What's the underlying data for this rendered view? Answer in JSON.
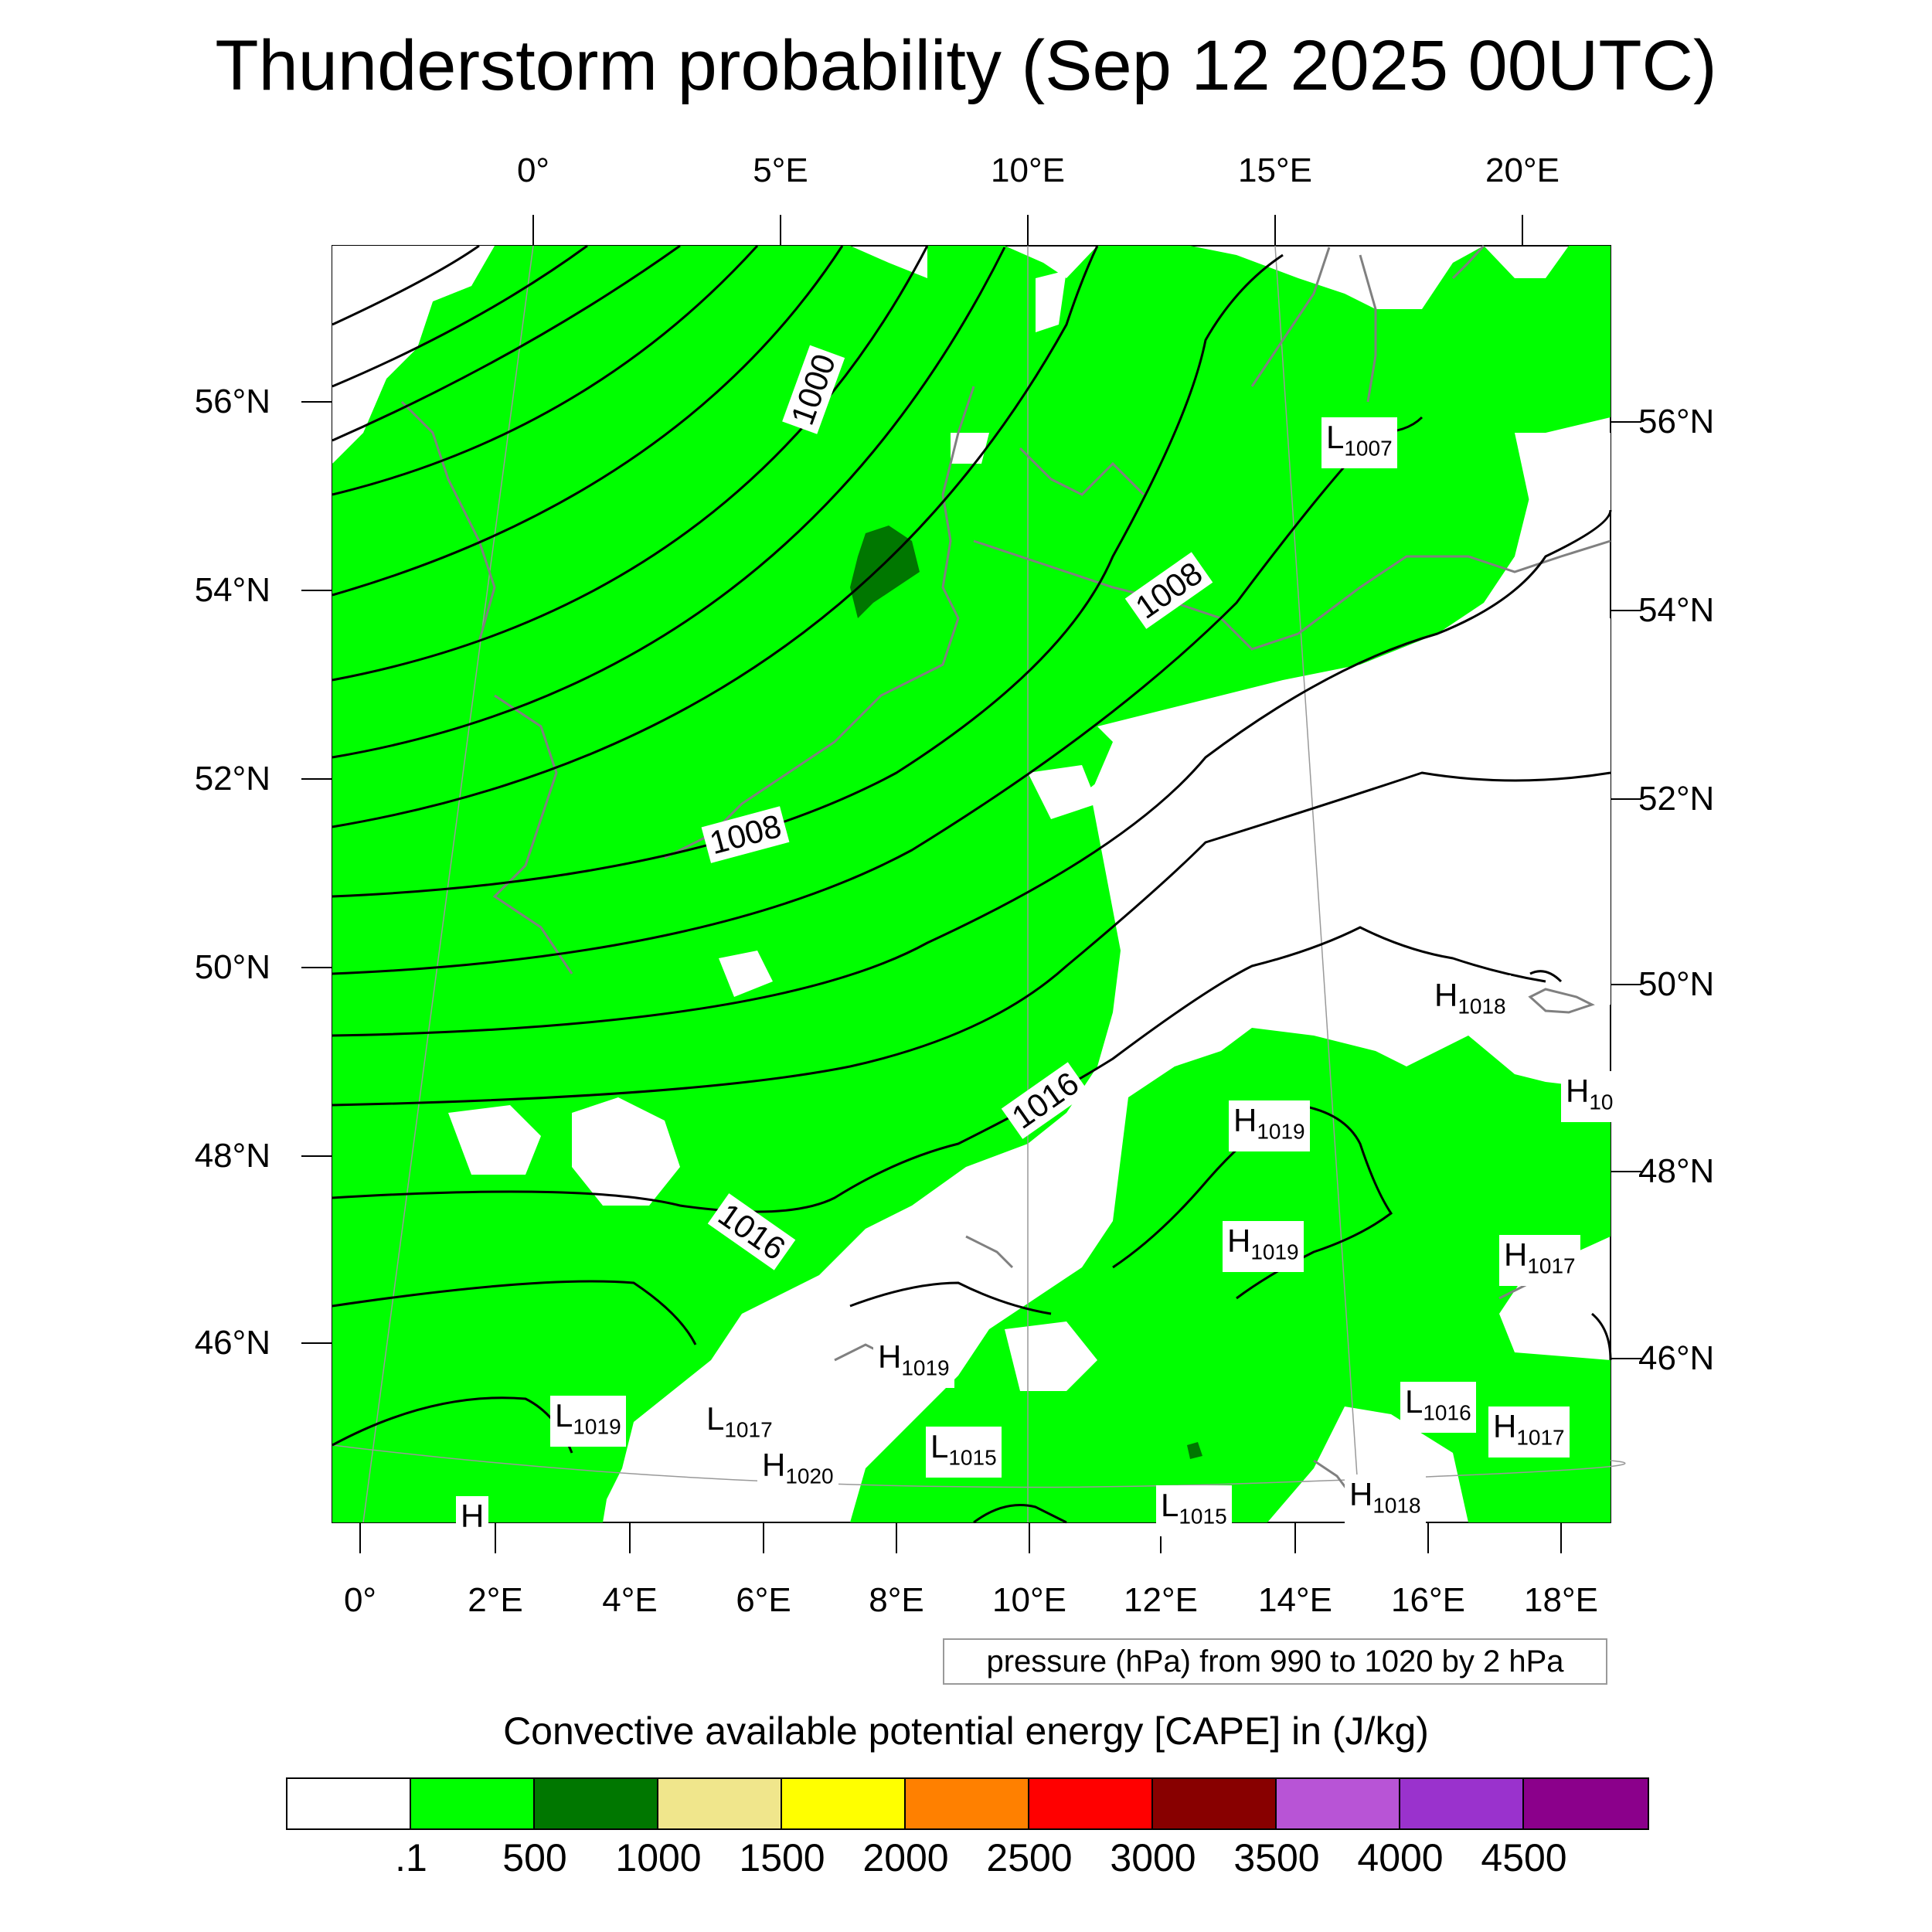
{
  "title": "Thunderstorm probability (Sep 12 2025 00UTC)",
  "top_lon_labels": [
    "0°",
    "5°E",
    "10°E",
    "15°E",
    "20°E"
  ],
  "bottom_lon_labels": [
    "0°",
    "2°E",
    "4°E",
    "6°E",
    "8°E",
    "10°E",
    "12°E",
    "14°E",
    "16°E",
    "18°E"
  ],
  "left_lat_labels": [
    "56°N",
    "54°N",
    "52°N",
    "50°N",
    "48°N",
    "46°N"
  ],
  "right_lat_labels": [
    "56°N",
    "54°N",
    "52°N",
    "50°N",
    "48°N",
    "46°N"
  ],
  "contour_info": "pressure (hPa) from 990 to 1020 by 2 hPa",
  "colorbar": {
    "title": "Convective available potential energy [CAPE] in (J/kg)",
    "colors": [
      "#ffffff",
      "#00ff00",
      "#007700",
      "#f0e68c",
      "#ffff00",
      "#ff8000",
      "#ff0000",
      "#880000",
      "#b854d6",
      "#9a32cd",
      "#8b008b"
    ],
    "labels": [
      ".1",
      "500",
      "1000",
      "1500",
      "2000",
      "2500",
      "3000",
      "3500",
      "4000",
      "4500"
    ]
  },
  "isobar_labels": [
    "1000",
    "1008",
    "1008",
    "1016",
    "1016"
  ],
  "pressure_centers": [
    {
      "kind": "L",
      "value": "1007"
    },
    {
      "kind": "H",
      "value": "1018"
    },
    {
      "kind": "H",
      "value": "10"
    },
    {
      "kind": "H",
      "value": "1019"
    },
    {
      "kind": "H",
      "value": "1019"
    },
    {
      "kind": "H",
      "value": "1017"
    },
    {
      "kind": "H",
      "value": "1019"
    },
    {
      "kind": "L",
      "value": "1019"
    },
    {
      "kind": "L",
      "value": "1017"
    },
    {
      "kind": "H",
      "value": "1020"
    },
    {
      "kind": "L",
      "value": "1015"
    },
    {
      "kind": "L",
      "value": "1016"
    },
    {
      "kind": "H",
      "value": "1017"
    },
    {
      "kind": "H",
      "value": "1018"
    },
    {
      "kind": "L",
      "value": "1015"
    },
    {
      "kind": "H",
      "value": ""
    }
  ]
}
